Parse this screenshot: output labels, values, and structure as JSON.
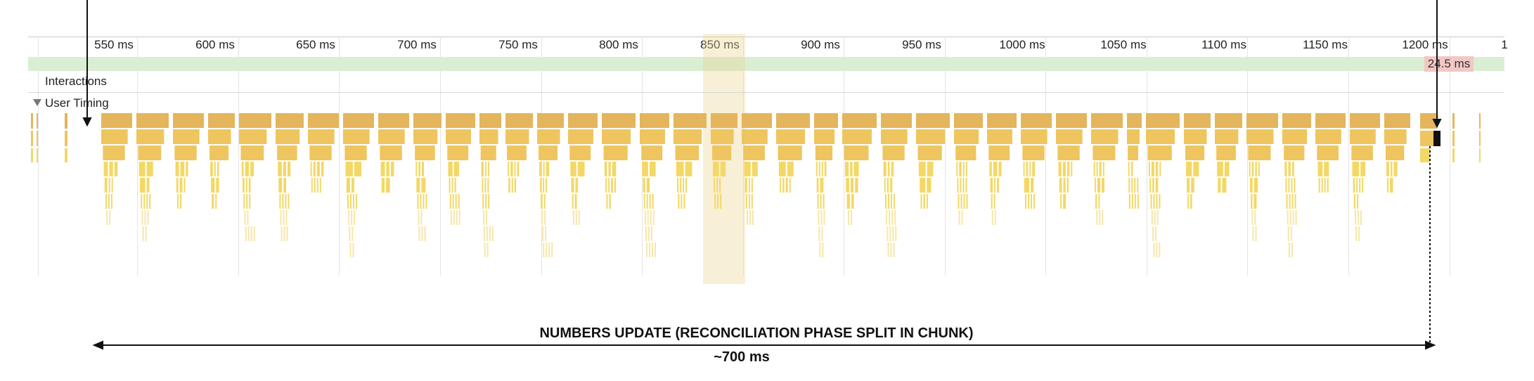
{
  "timeline": {
    "ruler_labels": [
      "550 ms",
      "600 ms",
      "650 ms",
      "700 ms",
      "750 ms",
      "800 ms",
      "850 ms",
      "900 ms",
      "950 ms",
      "1000 ms",
      "1050 ms",
      "1100 ms",
      "1150 ms",
      "1200 ms"
    ],
    "ruler_label_trailing": "1",
    "interactions_label": "Interactions",
    "interaction_badge": "24.5 ms",
    "user_timing_label": "User Timing",
    "colors": {
      "fps_band": "#d9eed3",
      "flame_dark": "#e4b55c",
      "flame_mid": "#eec55f",
      "flame_light": "#f3d866",
      "flame_pale": "#f6e7a8",
      "highlight": "#ecd696",
      "badge": "#f2c7c4"
    }
  },
  "annotation": {
    "title": "NUMBERS UPDATE (RECONCILIATION PHASE SPLIT IN CHUNK)",
    "duration": "~700 ms"
  }
}
